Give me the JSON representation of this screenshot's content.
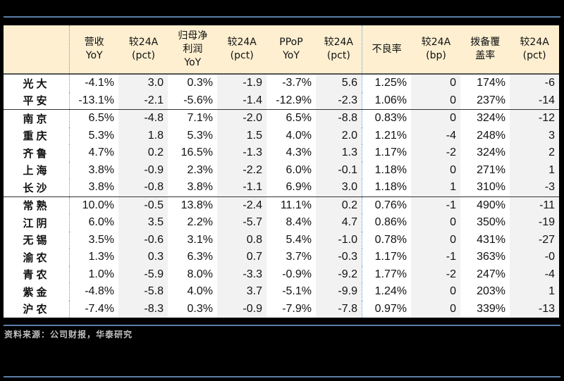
{
  "table": {
    "headers": [
      "",
      "营收\nYoY",
      "较24A\n(pct)",
      "归母净\n利润\nYoY",
      "较24A\n(pct)",
      "PPoP\nYoY",
      "较24A\n(pct)",
      "不良率",
      "较24A\n(bp)",
      "拨备覆\n盖率",
      "较24A\n(pct)"
    ],
    "rows": [
      [
        "光大",
        "-4.1%",
        "3.0",
        "0.3%",
        "-1.9",
        "-3.7%",
        "5.6",
        "1.25%",
        "0",
        "174%",
        "-6"
      ],
      [
        "平安",
        "-13.1%",
        "-2.1",
        "-5.6%",
        "-1.4",
        "-12.9%",
        "-2.3",
        "1.06%",
        "0",
        "237%",
        "-14"
      ],
      [
        "南京",
        "6.5%",
        "-4.8",
        "7.1%",
        "-2.0",
        "6.5%",
        "-8.8",
        "0.83%",
        "0",
        "324%",
        "-12"
      ],
      [
        "重庆",
        "5.3%",
        "1.8",
        "5.3%",
        "1.5",
        "4.0%",
        "2.0",
        "1.21%",
        "-4",
        "248%",
        "3"
      ],
      [
        "齐鲁",
        "4.7%",
        "0.2",
        "16.5%",
        "-1.3",
        "4.3%",
        "1.3",
        "1.17%",
        "-2",
        "324%",
        "2"
      ],
      [
        "上海",
        "3.8%",
        "-0.9",
        "2.3%",
        "-2.2",
        "6.0%",
        "-0.1",
        "1.18%",
        "0",
        "271%",
        "1"
      ],
      [
        "长沙",
        "3.8%",
        "-0.8",
        "3.8%",
        "-1.1",
        "6.9%",
        "3.0",
        "1.18%",
        "1",
        "310%",
        "-3"
      ],
      [
        "常熟",
        "10.0%",
        "-0.5",
        "13.8%",
        "-2.4",
        "11.1%",
        "0.2",
        "0.76%",
        "-1",
        "490%",
        "-11"
      ],
      [
        "江阴",
        "6.0%",
        "3.5",
        "2.2%",
        "-5.7",
        "8.4%",
        "4.7",
        "0.86%",
        "0",
        "350%",
        "-19"
      ],
      [
        "无锡",
        "3.5%",
        "-0.6",
        "3.1%",
        "0.8",
        "5.4%",
        "-1.0",
        "0.78%",
        "0",
        "431%",
        "-27"
      ],
      [
        "渝农",
        "1.3%",
        "0.3",
        "6.3%",
        "0.7",
        "3.7%",
        "-0.3",
        "1.17%",
        "-1",
        "363%",
        "-0"
      ],
      [
        "青农",
        "1.0%",
        "-5.9",
        "8.0%",
        "-3.3",
        "-0.9%",
        "-9.2",
        "1.77%",
        "-2",
        "247%",
        "-4"
      ],
      [
        "紫金",
        "-4.8%",
        "-5.8",
        "4.0%",
        "3.7",
        "-5.1%",
        "-9.9",
        "1.24%",
        "0",
        "203%",
        "1"
      ],
      [
        "沪农",
        "-7.4%",
        "-8.3",
        "0.3%",
        "-0.9",
        "-7.9%",
        "-7.8",
        "0.97%",
        "0",
        "339%",
        "-13"
      ]
    ]
  },
  "source": "资料来源：公司财报，华泰研究",
  "colors": {
    "header_bg": "#fdefd0",
    "shade": "#f2f2f2",
    "rule": "#5b7fa8",
    "dashed_divider": "#5b9bd5"
  }
}
